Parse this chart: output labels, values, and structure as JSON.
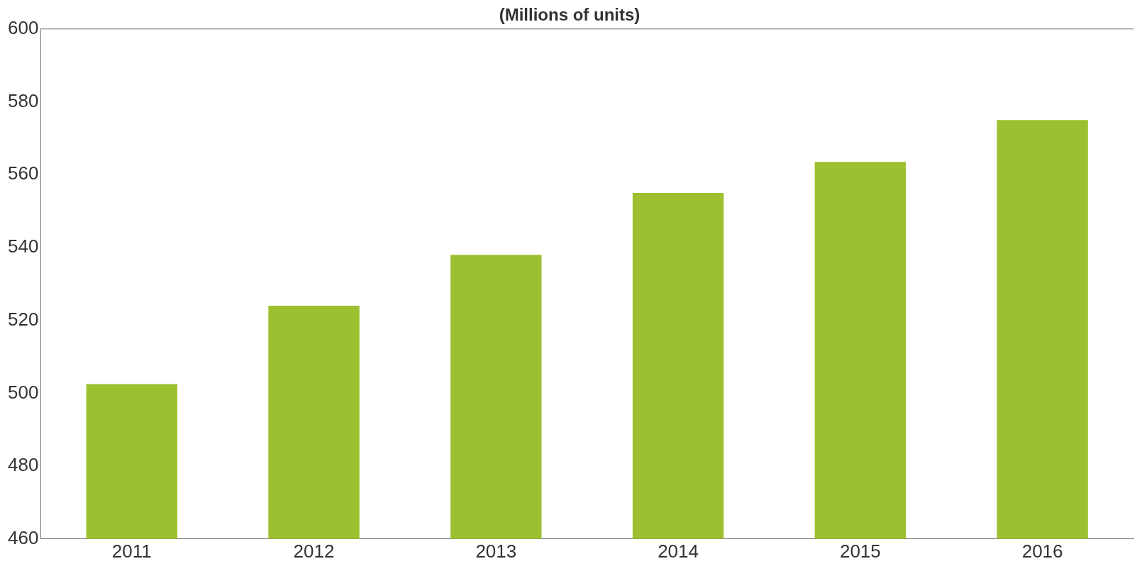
{
  "chart_data": {
    "type": "bar",
    "subtitle": "(Millions of units)",
    "categories": [
      "2011",
      "2012",
      "2013",
      "2014",
      "2015",
      "2016"
    ],
    "values": [
      502.5,
      524,
      538,
      555,
      563.5,
      575
    ],
    "color": "#9dc030",
    "ylim": [
      460,
      600
    ],
    "yticks": [
      460,
      480,
      500,
      520,
      540,
      560,
      580,
      600
    ],
    "grid": false
  }
}
